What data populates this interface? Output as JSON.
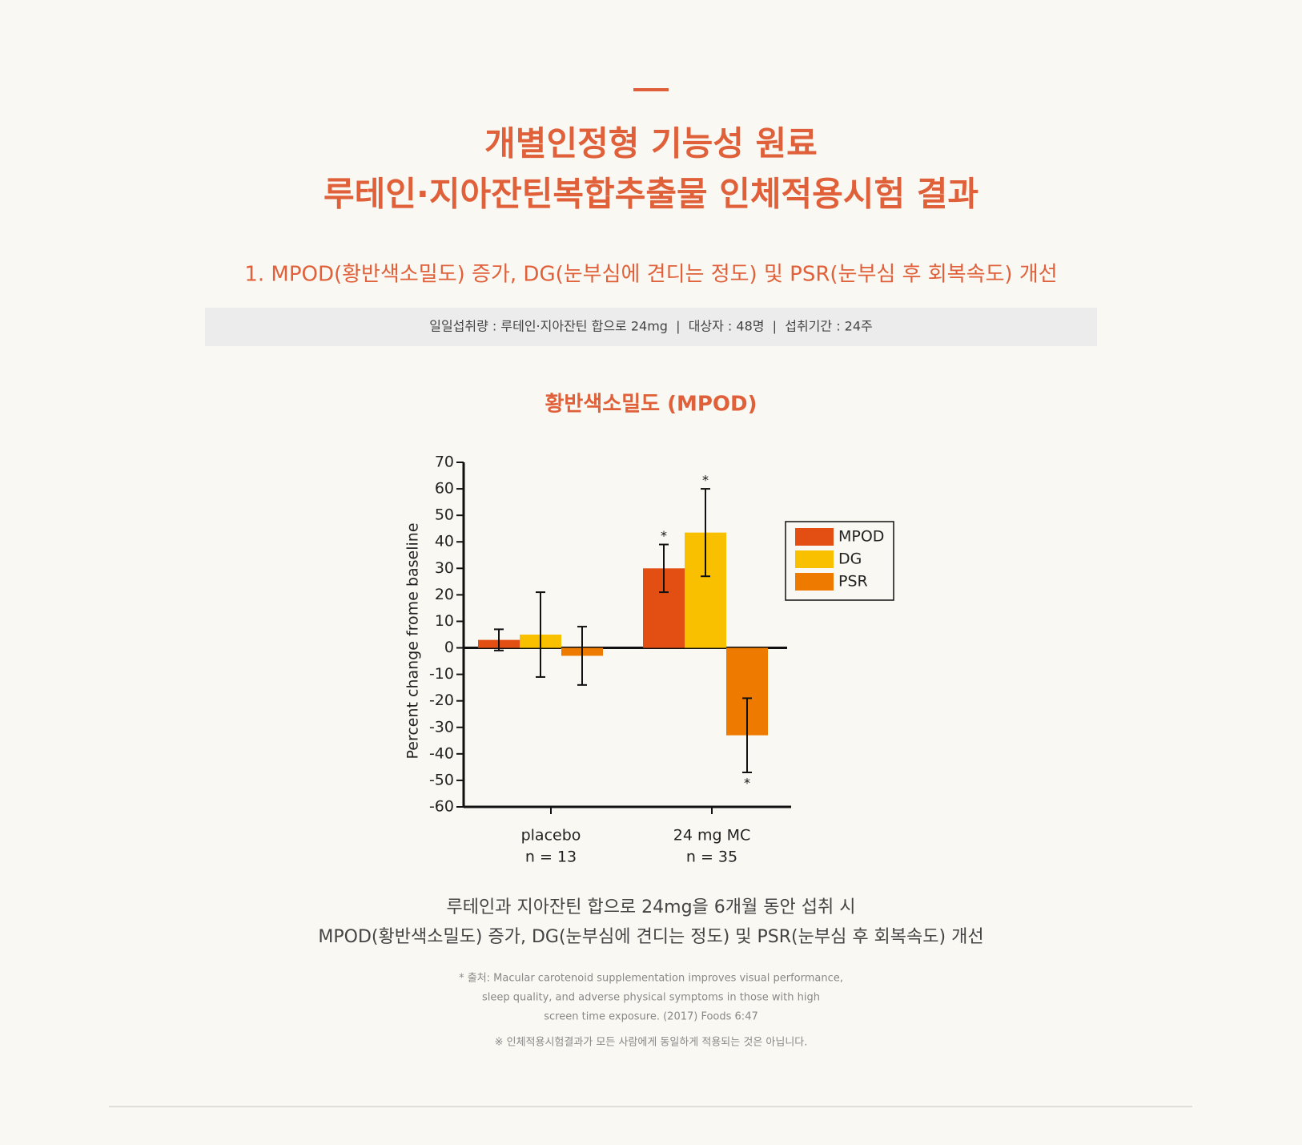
{
  "header": {
    "title_lines": [
      "개별인정형 기능성 원료",
      "루테인·지아잔틴복합추출물 인체적용시험 결과"
    ],
    "subtitle": "1. MPOD(황반색소밀도) 증가, DG(눈부심에 견디는 정도) 및 PSR(눈부심 후 회복속도) 개선",
    "info": "일일섭취량 : 루테인·지아잔틴 합으로 24mg  |  대상자 : 48명  |  섭취기간 : 24주"
  },
  "chart_data": {
    "type": "bar",
    "title": "황반색소밀도 (MPOD)",
    "y_label": "Percent change frome baseline",
    "categories": [
      "placebo",
      "24 mg MC"
    ],
    "category_notes": [
      "n = 13",
      "n = 35"
    ],
    "series": [
      {
        "name": "MPOD",
        "color": "#e34f12",
        "values": [
          3,
          30
        ],
        "errors": [
          4,
          9
        ],
        "markers": [
          null,
          "*"
        ],
        "marker_side": "top"
      },
      {
        "name": "DG",
        "color": "#f9c000",
        "values": [
          5,
          43.5
        ],
        "errors": [
          16,
          16.5
        ],
        "markers": [
          null,
          "*"
        ],
        "marker_side": "top"
      },
      {
        "name": "PSR",
        "color": "#ee7b00",
        "values": [
          -3,
          -33
        ],
        "errors": [
          11,
          14
        ],
        "markers": [
          null,
          "*"
        ],
        "marker_side": "bottom"
      }
    ],
    "ylim": [
      -60,
      70
    ],
    "yticks": [
      -60,
      -50,
      -40,
      -30,
      -20,
      -10,
      0,
      10,
      20,
      30,
      40,
      50,
      60,
      70
    ],
    "legend": "right",
    "grid": false
  },
  "footer": {
    "summary_lines": [
      "루테인과 지아잔틴 합으로 24mg을 6개월 동안 섭취 시",
      "MPOD(황반색소밀도) 증가, DG(눈부심에 견디는 정도) 및 PSR(눈부심 후 회복속도) 개선"
    ],
    "source_lines": [
      "* 출처: Macular carotenoid supplementation improves visual performance,",
      "sleep quality, and adverse physical symptoms in those with high",
      "screen time exposure. (2017) Foods 6:47"
    ],
    "notice": "※ 인체적용시험결과가 모든 사람에게 동일하게 적용되는 것은 아닙니다."
  }
}
